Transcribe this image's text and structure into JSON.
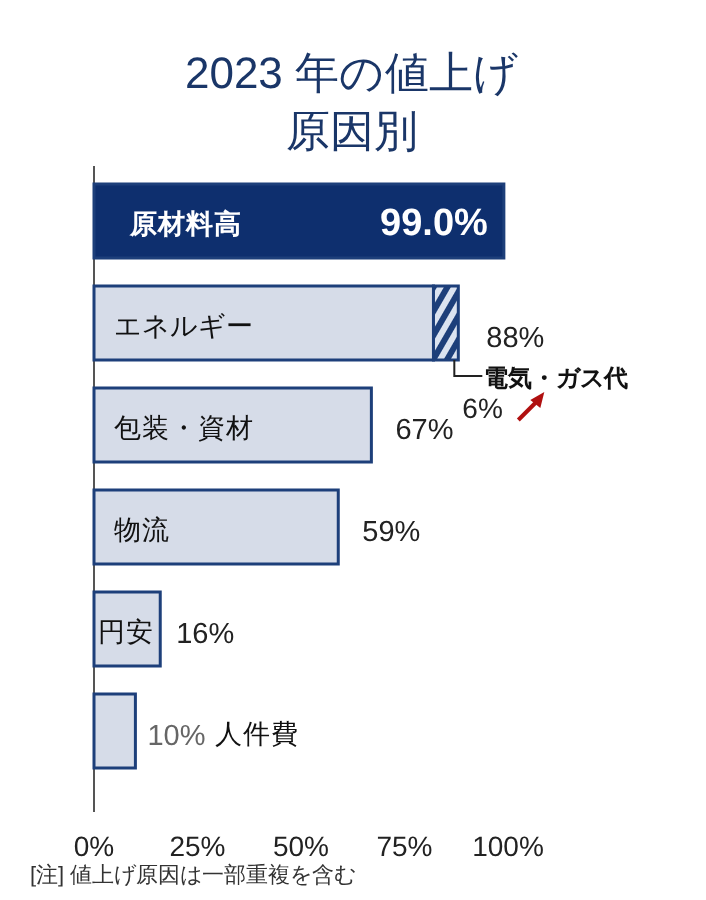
{
  "chart_data": {
    "type": "bar",
    "orientation": "horizontal",
    "stacked": true,
    "title": "2023 年の値上げ",
    "subtitle": "原因別",
    "categories": [
      "原材料高",
      "エネルギー",
      "包装・資材",
      "物流",
      "円安",
      "人件費"
    ],
    "series": [
      {
        "colors": [
          "#0e2f6e",
          "#d6dce8",
          "#d6dce8",
          "#d6dce8",
          "#d6dce8",
          "#d6dce8"
        ],
        "values": [
          99.0,
          82,
          67,
          59,
          16,
          10
        ],
        "value_labels": [
          "99.0%",
          null,
          "67%",
          "59%",
          "16%",
          "10%"
        ]
      },
      {
        "name": "電気・ガス代",
        "color": "#1d3f7a",
        "values": [
          null,
          6,
          null,
          null,
          null,
          null
        ],
        "value_labels": [
          null,
          "6%",
          null,
          null,
          null,
          null
        ]
      }
    ],
    "totals": [
      null,
      "88%",
      null,
      null,
      null,
      null
    ],
    "xlim": [
      0,
      100
    ],
    "xticks": [
      {
        "value": 0,
        "label": "0%"
      },
      {
        "value": 25,
        "label": "25%"
      },
      {
        "value": 50,
        "label": "50%"
      },
      {
        "value": 75,
        "label": "75%"
      },
      {
        "value": 100,
        "label": "100%"
      }
    ],
    "grid": false,
    "annotations": [
      "[注] 値上げ原因は一部重複を含む"
    ]
  }
}
